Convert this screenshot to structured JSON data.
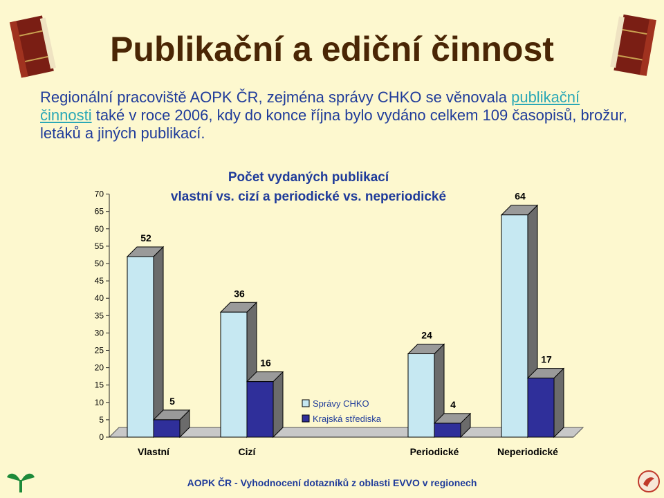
{
  "slide": {
    "title": "Publikační a ediční činnost",
    "intro_prefix": "Regionální pracoviště AOPK ČR, zejména správy CHKO se věnovala ",
    "intro_link": "publikační činnosti",
    "intro_suffix": " také v roce 2006, kdy do konce října bylo vydáno celkem 109 časopisů, brožur, letáků a jiných publikací.",
    "footer": "AOPK ČR - Vyhodnocení dotazníků z oblasti EVVO v regionech"
  },
  "icons": {
    "top_left": "book-icon",
    "top_right": "book-icon",
    "bottom_left": "plant-logo-icon",
    "bottom_right": "bird-logo-icon"
  },
  "colors": {
    "background": "#fdf8cf",
    "title": "#4a2605",
    "text": "#1f3b9a",
    "link": "#2aa8b6",
    "series_1": "#c6e8f2",
    "series_2": "#2f2f9a"
  },
  "chart_data": {
    "type": "bar",
    "style": "3d",
    "title_line1": "Počet vydaných publikací",
    "title_line2": "vlastní vs. cizí a periodické vs. neperiodické",
    "categories": [
      "Vlastní",
      "Cizí",
      "Periodické",
      "Neperiodické"
    ],
    "series": [
      {
        "name": "Správy CHKO",
        "values": [
          52,
          36,
          24,
          64
        ]
      },
      {
        "name": "Krajská střediska",
        "values": [
          5,
          16,
          4,
          17
        ]
      }
    ],
    "ylim": [
      0,
      70
    ],
    "yticks": [
      "0",
      "5",
      "10",
      "15",
      "20",
      "25",
      "30",
      "35",
      "40",
      "45",
      "50",
      "55",
      "60",
      "65",
      "70"
    ],
    "legend_position": "inside-bottom-center",
    "data_labels": true,
    "grid": false
  }
}
